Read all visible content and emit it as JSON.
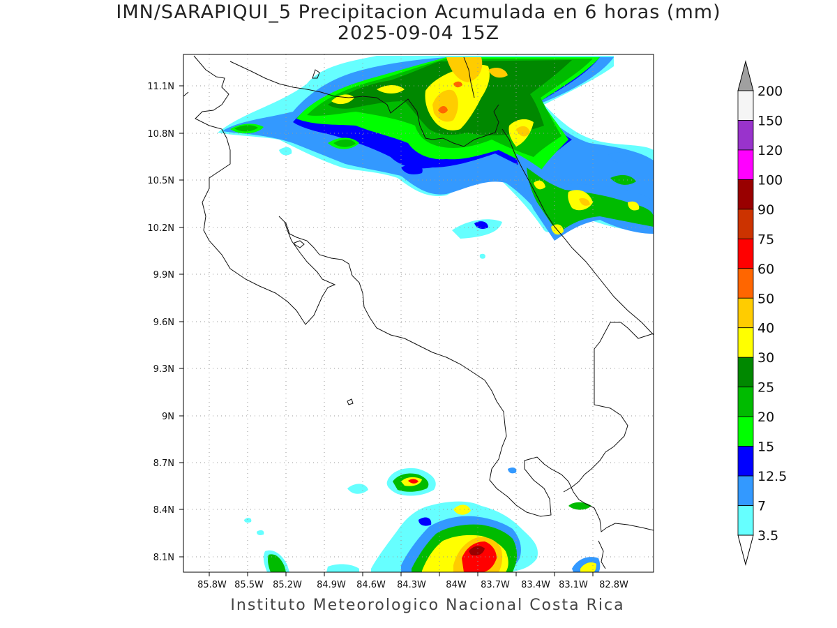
{
  "header": {
    "title_line1": "IMN/SARAPIQUI_5 Precipitacion Acumulada en 6 horas (mm)",
    "title_line2": "2025-09-04 15Z"
  },
  "footer": {
    "credit": "Instituto Meteorologico Nacional Costa Rica"
  },
  "map": {
    "lon_ticks": [
      "85.8W",
      "85.5W",
      "85.2W",
      "84.9W",
      "84.6W",
      "84.3W",
      "84W",
      "83.7W",
      "83.4W",
      "83.1W",
      "82.8W"
    ],
    "lat_ticks": [
      "11.1N",
      "10.8N",
      "10.5N",
      "10.2N",
      "9.9N",
      "9.6N",
      "9.3N",
      "9N",
      "8.7N",
      "8.4N",
      "8.1N"
    ],
    "grid": "dotted"
  },
  "colorbar": {
    "labels": [
      "200",
      "150",
      "120",
      "100",
      "90",
      "75",
      "60",
      "50",
      "40",
      "30",
      "25",
      "20",
      "15",
      "12.5",
      "7",
      "3.5"
    ],
    "colors": [
      "#a0a0a0",
      "#f5f5f5",
      "#9933cc",
      "#ff00ff",
      "#990000",
      "#cc3300",
      "#ff0000",
      "#ff6600",
      "#ffcc00",
      "#ffff00",
      "#008800",
      "#00bb00",
      "#00ff00",
      "#0000ff",
      "#3399ff",
      "#66ffff"
    ]
  }
}
